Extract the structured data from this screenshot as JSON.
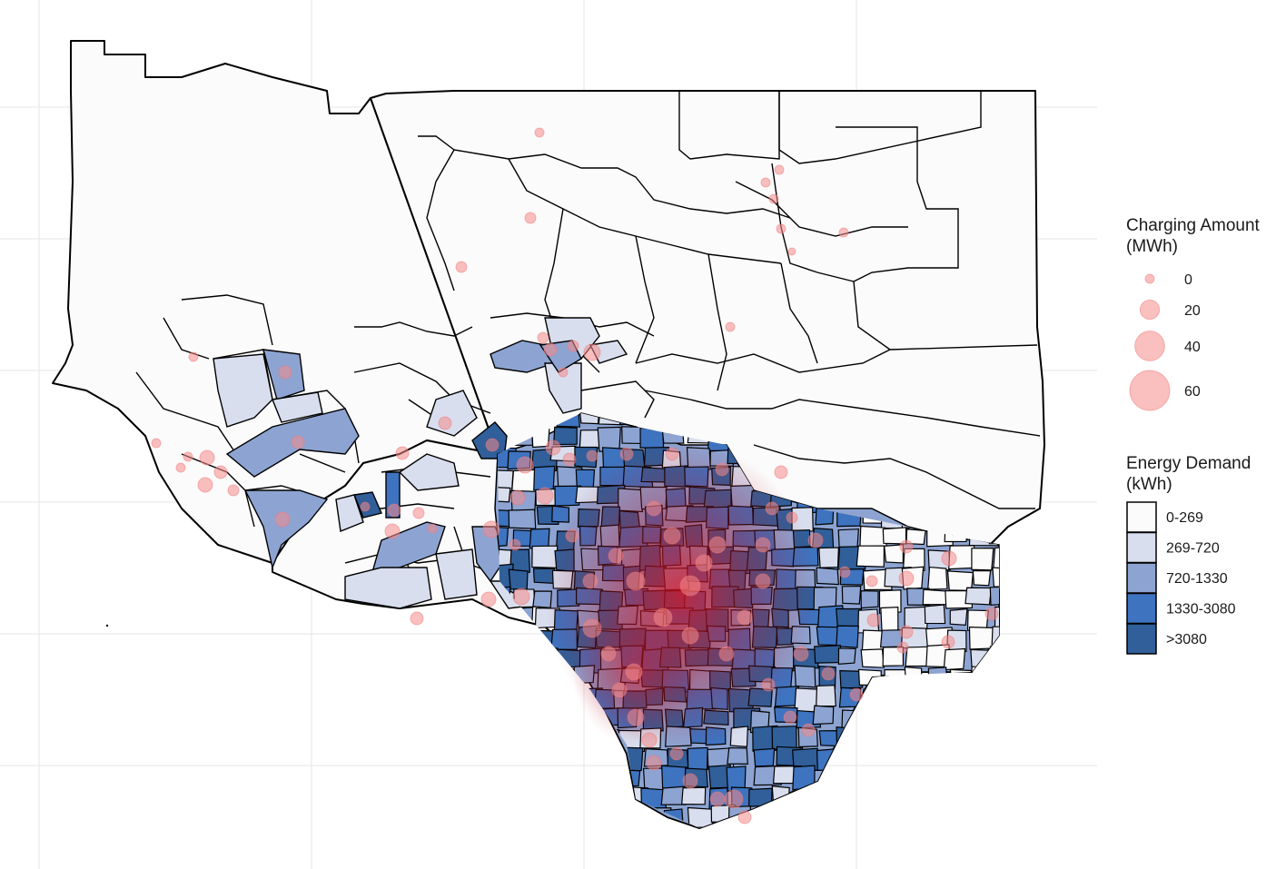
{
  "legends": {
    "charging": {
      "title_line1": "Charging Amount",
      "title_line2": "(MWh)",
      "entries": [
        {
          "label": "0",
          "value": 0
        },
        {
          "label": "20",
          "value": 20
        },
        {
          "label": "40",
          "value": 40
        },
        {
          "label": "60",
          "value": 60
        }
      ]
    },
    "demand": {
      "title_line1": "Energy Demand",
      "title_line2": "(kWh)",
      "entries": [
        {
          "label": "0-269",
          "color": "#fbfbfb"
        },
        {
          "label": "269-720",
          "color": "#d8deee"
        },
        {
          "label": "720-1330",
          "color": "#8da4d2"
        },
        {
          "label": "1330-3080",
          "color": "#3e73c0"
        },
        {
          "label": ">3080",
          "color": "#305f9a"
        }
      ]
    }
  },
  "colors": {
    "bubble": "#f58a8a",
    "border": "#000000",
    "grid": "#e6e6e6",
    "hotspot": "#d61f2b"
  }
}
